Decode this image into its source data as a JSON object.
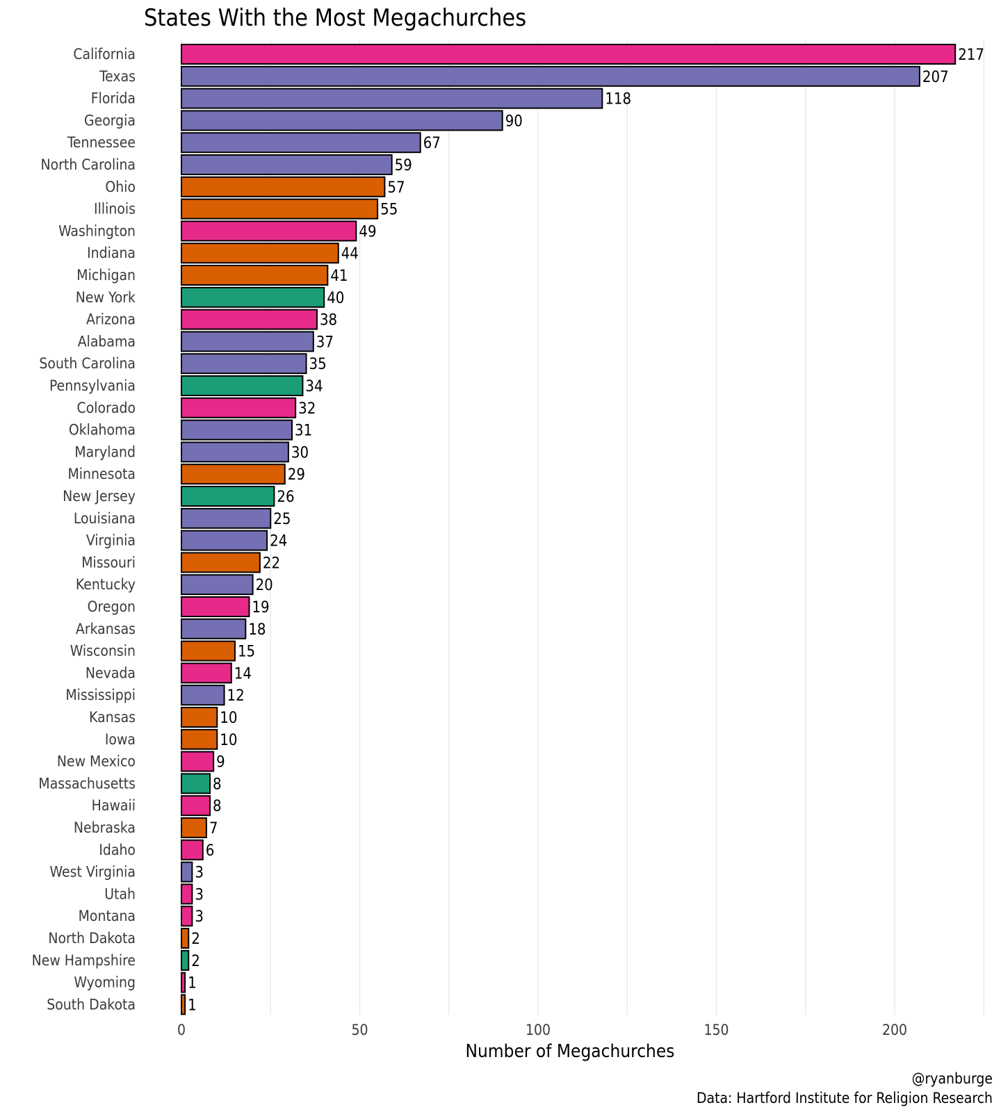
{
  "chart_data": {
    "type": "bar",
    "orientation": "horizontal",
    "title": "States With the Most Megachurches",
    "xlabel": "Number of Megachurches",
    "ylabel": "",
    "xlim": [
      0,
      225
    ],
    "x_ticks": [
      0,
      50,
      100,
      150,
      200
    ],
    "grid": true,
    "legend": "none",
    "caption": [
      "@ryanburge",
      "Data: Hartford Institute for Religion Research"
    ],
    "region_colors": {
      "west": "#E7298A",
      "south": "#7570B3",
      "midwest": "#D95F02",
      "northeast": "#1B9E77"
    },
    "bars": [
      {
        "state": "California",
        "value": 217,
        "region": "west"
      },
      {
        "state": "Texas",
        "value": 207,
        "region": "south"
      },
      {
        "state": "Florida",
        "value": 118,
        "region": "south"
      },
      {
        "state": "Georgia",
        "value": 90,
        "region": "south"
      },
      {
        "state": "Tennessee",
        "value": 67,
        "region": "south"
      },
      {
        "state": "North Carolina",
        "value": 59,
        "region": "south"
      },
      {
        "state": "Ohio",
        "value": 57,
        "region": "midwest"
      },
      {
        "state": "Illinois",
        "value": 55,
        "region": "midwest"
      },
      {
        "state": "Washington",
        "value": 49,
        "region": "west"
      },
      {
        "state": "Indiana",
        "value": 44,
        "region": "midwest"
      },
      {
        "state": "Michigan",
        "value": 41,
        "region": "midwest"
      },
      {
        "state": "New York",
        "value": 40,
        "region": "northeast"
      },
      {
        "state": "Arizona",
        "value": 38,
        "region": "west"
      },
      {
        "state": "Alabama",
        "value": 37,
        "region": "south"
      },
      {
        "state": "South Carolina",
        "value": 35,
        "region": "south"
      },
      {
        "state": "Pennsylvania",
        "value": 34,
        "region": "northeast"
      },
      {
        "state": "Colorado",
        "value": 32,
        "region": "west"
      },
      {
        "state": "Oklahoma",
        "value": 31,
        "region": "south"
      },
      {
        "state": "Maryland",
        "value": 30,
        "region": "south"
      },
      {
        "state": "Minnesota",
        "value": 29,
        "region": "midwest"
      },
      {
        "state": "New Jersey",
        "value": 26,
        "region": "northeast"
      },
      {
        "state": "Louisiana",
        "value": 25,
        "region": "south"
      },
      {
        "state": "Virginia",
        "value": 24,
        "region": "south"
      },
      {
        "state": "Missouri",
        "value": 22,
        "region": "midwest"
      },
      {
        "state": "Kentucky",
        "value": 20,
        "region": "south"
      },
      {
        "state": "Oregon",
        "value": 19,
        "region": "west"
      },
      {
        "state": "Arkansas",
        "value": 18,
        "region": "south"
      },
      {
        "state": "Wisconsin",
        "value": 15,
        "region": "midwest"
      },
      {
        "state": "Nevada",
        "value": 14,
        "region": "west"
      },
      {
        "state": "Mississippi",
        "value": 12,
        "region": "south"
      },
      {
        "state": "Kansas",
        "value": 10,
        "region": "midwest"
      },
      {
        "state": "Iowa",
        "value": 10,
        "region": "midwest"
      },
      {
        "state": "New Mexico",
        "value": 9,
        "region": "west"
      },
      {
        "state": "Massachusetts",
        "value": 8,
        "region": "northeast"
      },
      {
        "state": "Hawaii",
        "value": 8,
        "region": "west"
      },
      {
        "state": "Nebraska",
        "value": 7,
        "region": "midwest"
      },
      {
        "state": "Idaho",
        "value": 6,
        "region": "west"
      },
      {
        "state": "West Virginia",
        "value": 3,
        "region": "south"
      },
      {
        "state": "Utah",
        "value": 3,
        "region": "west"
      },
      {
        "state": "Montana",
        "value": 3,
        "region": "west"
      },
      {
        "state": "North Dakota",
        "value": 2,
        "region": "midwest"
      },
      {
        "state": "New Hampshire",
        "value": 2,
        "region": "northeast"
      },
      {
        "state": "Wyoming",
        "value": 1,
        "region": "west"
      },
      {
        "state": "South Dakota",
        "value": 1,
        "region": "midwest"
      }
    ]
  }
}
